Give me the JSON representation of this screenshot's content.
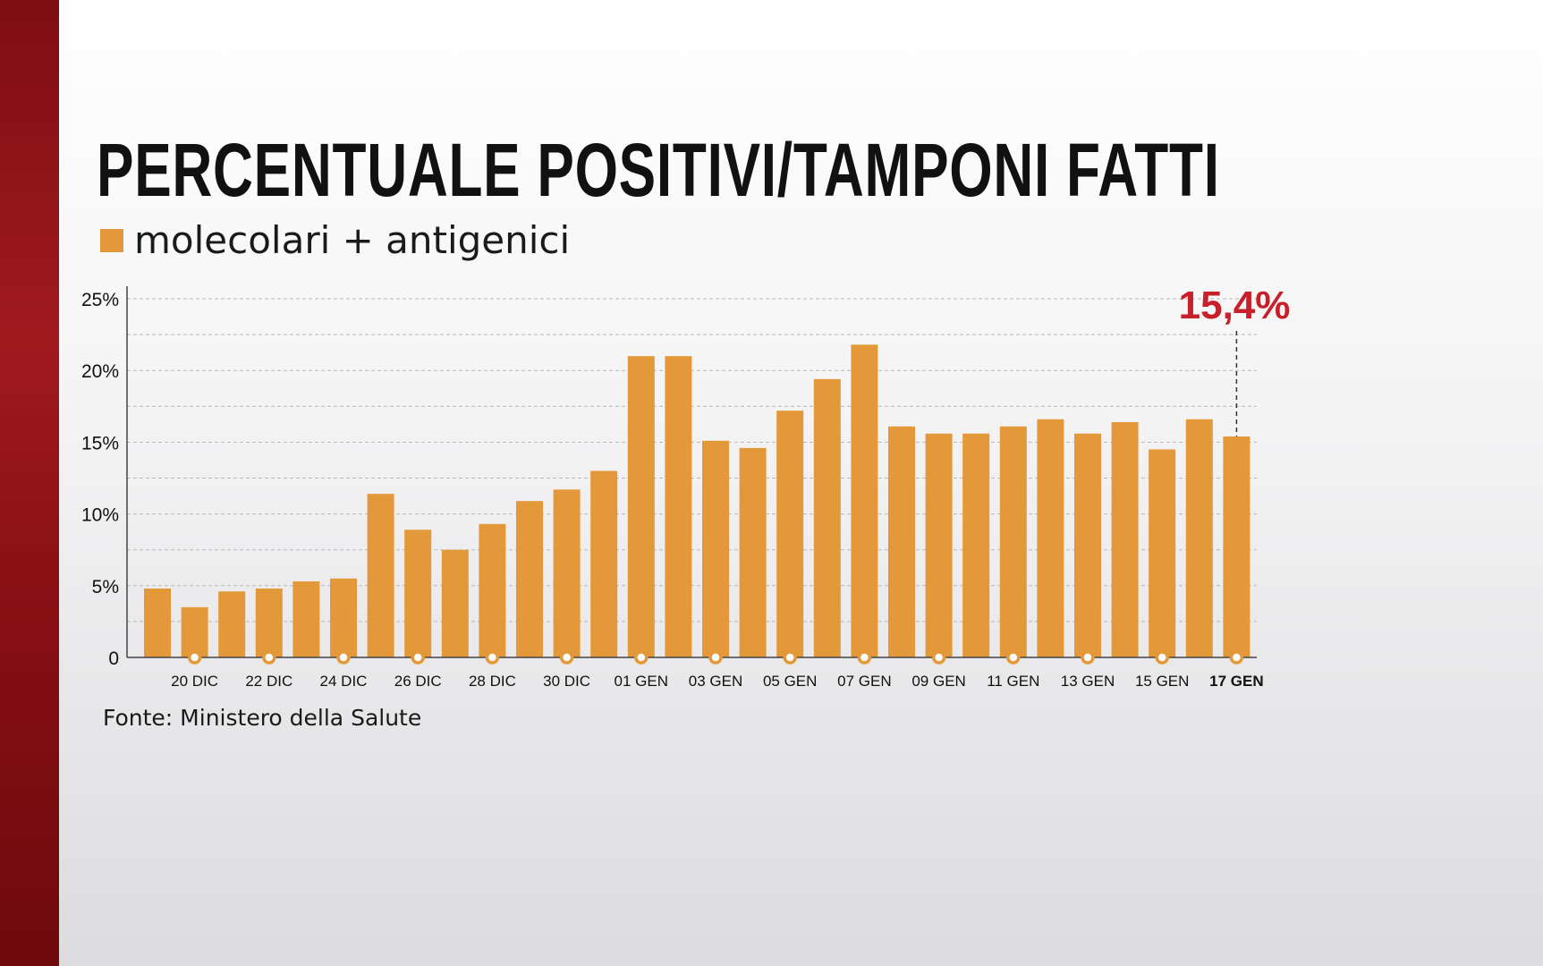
{
  "title": "PERCENTUALE POSITIVI/TAMPONI FATTI",
  "source": "Fonte: Ministero della Salute",
  "colors": {
    "bar": "#e3993a",
    "callout": "#c8202a",
    "axis": "#444444",
    "grid": "#b8b8b8"
  },
  "chart_data": {
    "type": "bar",
    "title": "PERCENTUALE POSITIVI/TAMPONI FATTI",
    "series": [
      {
        "name": "molecolari + antigenici",
        "values": [
          4.8,
          3.5,
          4.6,
          4.8,
          5.3,
          5.5,
          11.4,
          8.9,
          7.5,
          9.3,
          10.9,
          11.7,
          13.0,
          21.0,
          21.0,
          15.1,
          14.6,
          17.2,
          19.4,
          21.8,
          16.1,
          15.6,
          15.6,
          16.1,
          16.6,
          15.6,
          16.4,
          14.5,
          16.6,
          15.4
        ]
      }
    ],
    "x_tick_labels": [
      "20 DIC",
      "22 DIC",
      "24 DIC",
      "26 DIC",
      "28 DIC",
      "30 DIC",
      "01 GEN",
      "03 GEN",
      "05 GEN",
      "07 GEN",
      "09 GEN",
      "11 GEN",
      "13 GEN",
      "15 GEN",
      "17 GEN"
    ],
    "y_tick_labels": [
      "0",
      "5%",
      "10%",
      "15%",
      "20%",
      "25%"
    ],
    "ylim": [
      0,
      25
    ],
    "y_ticks": [
      0,
      5,
      10,
      15,
      20,
      25
    ],
    "grid": true,
    "legend": "top-left",
    "highlight": {
      "label": "15,4%",
      "category": "17 GEN",
      "value": 15.4
    }
  }
}
